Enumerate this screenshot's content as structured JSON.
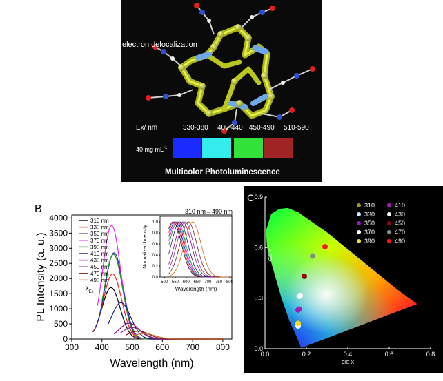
{
  "panel_a": {
    "electron_label": "electron delocalization",
    "ex_label": "Ex/ nm",
    "ranges": [
      "330-380",
      "400-440",
      "450-490",
      "510-590"
    ],
    "concentration": "40 mg mL",
    "concentration_sup": "-1",
    "swatch_colors": [
      "#1a2bff",
      "#35ecec",
      "#31e339",
      "#a02423"
    ],
    "caption": "Multicolor Photoluminescence"
  },
  "chart_data": [
    {
      "type": "line",
      "panel_label": "B",
      "xlabel": "Wavelength (nm)",
      "ylabel": "PL Intensity (a. u.)",
      "xlim": [
        300,
        830
      ],
      "ylim": [
        0,
        4100
      ],
      "xticks": [
        300,
        400,
        500,
        600,
        700,
        800
      ],
      "yticks": [
        0,
        500,
        1000,
        1500,
        2000,
        2500,
        3000,
        3500,
        4000
      ],
      "legend_title_main": "λ",
      "legend_title_sub": "Ex",
      "series": [
        {
          "name": "310 nm",
          "color": "#000000",
          "peak_x": 430,
          "peak_y": 1700,
          "sigma": 30,
          "start_x": 370
        },
        {
          "name": "330 nm",
          "color": "#e8281e",
          "peak_x": 435,
          "peak_y": 2150,
          "sigma": 30,
          "start_x": 375
        },
        {
          "name": "350 nm",
          "color": "#1a26c8",
          "peak_x": 440,
          "peak_y": 2850,
          "sigma": 30,
          "start_x": 380
        },
        {
          "name": "370 nm",
          "color": "#ee27ee",
          "peak_x": 432,
          "peak_y": 3750,
          "sigma": 30,
          "start_x": 385
        },
        {
          "name": "390 nm",
          "color": "#1f8c1f",
          "peak_x": 438,
          "peak_y": 2800,
          "sigma": 30,
          "start_x": 400
        },
        {
          "name": "410 nm",
          "color": "#1a1a7a",
          "peak_x": 463,
          "peak_y": 1200,
          "sigma": 32,
          "start_x": 420
        },
        {
          "name": "430 nm",
          "color": "#7a0a7a",
          "peak_x": 490,
          "peak_y": 520,
          "sigma": 33,
          "start_x": 440
        },
        {
          "name": "450 nm",
          "color": "#8a2a8a",
          "peak_x": 500,
          "peak_y": 380,
          "sigma": 34,
          "start_x": 460
        },
        {
          "name": "470 nm",
          "color": "#7a1a1a",
          "peak_x": 520,
          "peak_y": 260,
          "sigma": 35,
          "start_x": 480
        },
        {
          "name": "490 nm",
          "color": "#c87020",
          "peak_x": 540,
          "peak_y": 180,
          "sigma": 36,
          "start_x": 500
        }
      ],
      "inset": {
        "xlabel": "Wavelength (nm)",
        "ylabel": "Normalized Intensity",
        "annotation": "310 nm→490 nm",
        "xlim": [
          480,
          810
        ],
        "ylim": [
          0,
          1.1
        ],
        "xticks": [
          500,
          550,
          600,
          650,
          700,
          750,
          800
        ],
        "yticks": [
          "0.0",
          "0.2",
          "0.4",
          "0.6",
          "0.8",
          "1.0"
        ],
        "peaks": [
          540,
          545,
          550,
          555,
          560,
          570,
          585,
          595,
          610,
          630
        ]
      }
    },
    {
      "type": "scatter",
      "panel_label": "C",
      "xlabel": "CIE X",
      "ylabel": "CIE Y",
      "xlim": [
        0,
        0.8
      ],
      "ylim": [
        0,
        0.9
      ],
      "xticks": [
        "0.0",
        "0.2",
        "0.4",
        "0.6",
        "0.8"
      ],
      "yticks": [
        "0.0",
        "0.3",
        "0.6",
        "0.9"
      ],
      "points": [
        {
          "name": "310",
          "x": 0.16,
          "y": 0.14,
          "color": "#9a9a20"
        },
        {
          "name": "330",
          "x": 0.165,
          "y": 0.31,
          "color": "#c8eef8"
        },
        {
          "name": "350",
          "x": 0.16,
          "y": 0.23,
          "color": "#9a18c0"
        },
        {
          "name": "370",
          "x": 0.16,
          "y": 0.135,
          "color": "#ffffff"
        },
        {
          "name": "390",
          "x": 0.16,
          "y": 0.15,
          "color": "#f2e020"
        },
        {
          "name": "410",
          "x": 0.165,
          "y": 0.235,
          "color": "#a020b0"
        },
        {
          "name": "430",
          "x": 0.17,
          "y": 0.315,
          "color": "#ffffff"
        },
        {
          "name": "450",
          "x": 0.19,
          "y": 0.43,
          "color": "#8a0c0c"
        },
        {
          "name": "470",
          "x": 0.23,
          "y": 0.55,
          "color": "#8a8a8a"
        },
        {
          "name": "490",
          "x": 0.29,
          "y": 0.605,
          "color": "#ee1c1c"
        }
      ]
    }
  ]
}
